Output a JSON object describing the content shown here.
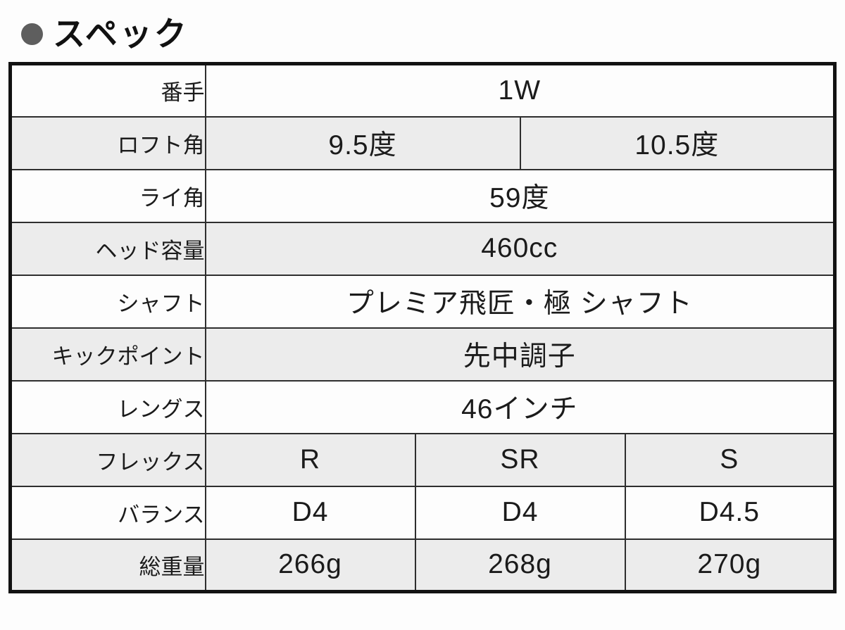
{
  "page": {
    "title": "スペック",
    "bullet_icon": "filled-circle",
    "colors": {
      "bullet": "#5e5e5e",
      "row_alt_bg": "#ececec",
      "row_bg": "#fdfdfd",
      "border_outer": "#121212",
      "border_inner": "#2e2e2e",
      "text": "#1b1b1b"
    }
  },
  "spec_table": {
    "rows": [
      {
        "label": "番手",
        "cells": [
          {
            "text": "1W"
          }
        ]
      },
      {
        "label": "ロフト角",
        "cells": [
          {
            "text": "9.5度"
          },
          {
            "text": "10.5度"
          }
        ]
      },
      {
        "label": "ライ角",
        "cells": [
          {
            "text": "59度"
          }
        ]
      },
      {
        "label": "ヘッド容量",
        "cells": [
          {
            "text": "460cc"
          }
        ]
      },
      {
        "label": "シャフト",
        "cells": [
          {
            "text": "プレミア飛匠・極 シャフト"
          }
        ]
      },
      {
        "label": "キックポイント",
        "cells": [
          {
            "text": "先中調子"
          }
        ]
      },
      {
        "label": "レングス",
        "cells": [
          {
            "text": "46インチ"
          }
        ]
      },
      {
        "label": "フレックス",
        "cells": [
          {
            "text": "R"
          },
          {
            "text": "SR"
          },
          {
            "text": "S"
          }
        ]
      },
      {
        "label": "バランス",
        "cells": [
          {
            "text": "D4"
          },
          {
            "text": "D4"
          },
          {
            "text": "D4.5"
          }
        ]
      },
      {
        "label": "総重量",
        "cells": [
          {
            "text": "266g"
          },
          {
            "text": "268g"
          },
          {
            "text": "270g"
          }
        ]
      }
    ]
  }
}
